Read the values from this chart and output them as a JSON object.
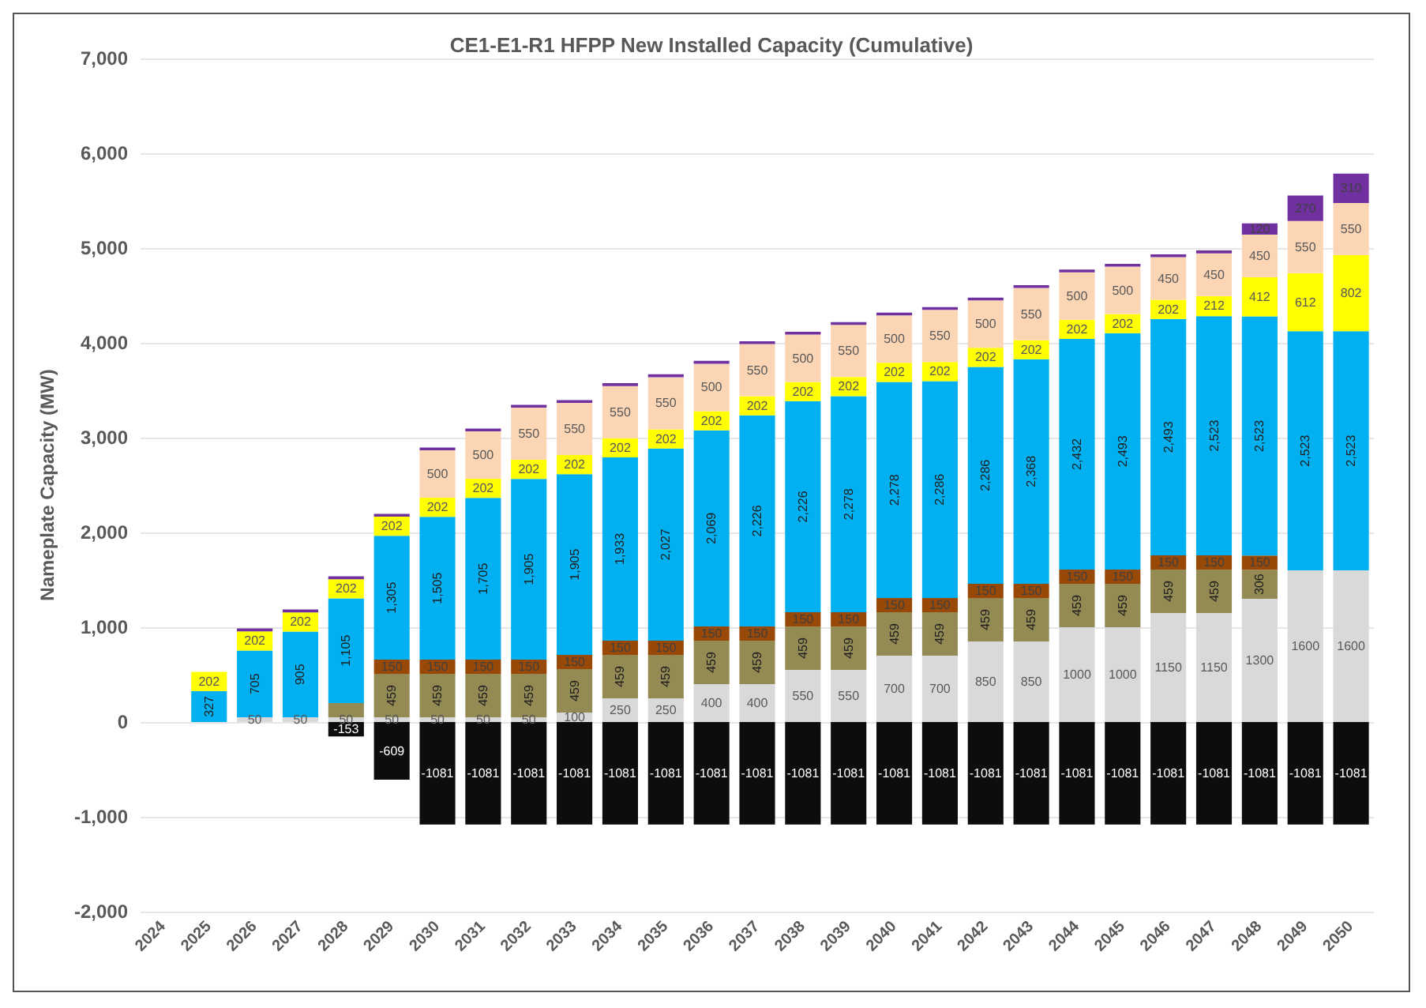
{
  "chart_data": {
    "type": "bar",
    "stacked": true,
    "title": "CE1-E1-R1 HFPP New Installed Capacity (Cumulative)",
    "ylabel": "Nameplate Capacity (MW)",
    "categories": [
      "2024",
      "2025",
      "2026",
      "2027",
      "2028",
      "2029",
      "2030",
      "2031",
      "2032",
      "2033",
      "2034",
      "2035",
      "2036",
      "2037",
      "2038",
      "2039",
      "2040",
      "2041",
      "2042",
      "2043",
      "2044",
      "2045",
      "2046",
      "2047",
      "2048",
      "2049",
      "2050"
    ],
    "ylim": [
      -2000,
      7000
    ],
    "yticks": [
      {
        "value": -2000,
        "label": "-2,000"
      },
      {
        "value": -1000,
        "label": "-1,000"
      },
      0,
      {
        "value": 1000,
        "label": "1,000"
      },
      {
        "value": 2000,
        "label": "2,000"
      },
      {
        "value": 3000,
        "label": "3,000"
      },
      {
        "value": 4000,
        "label": "4,000"
      },
      {
        "value": 5000,
        "label": "5,000"
      },
      {
        "value": 6000,
        "label": "6,000"
      },
      {
        "value": 7000,
        "label": "7,000"
      }
    ],
    "grid": "y",
    "legend": false,
    "series": [
      {
        "color": "#d9d9d9",
        "values": [
          null,
          null,
          50,
          50,
          50,
          50,
          50,
          50,
          50,
          100,
          250,
          250,
          400,
          400,
          550,
          550,
          700,
          700,
          850,
          850,
          1000,
          1000,
          1150,
          1150,
          1300,
          1600,
          1600
        ],
        "value_labels": [
          null,
          null,
          "50",
          "50",
          "50",
          "50",
          "50",
          "50",
          "50",
          "100",
          "250",
          "250",
          "400",
          "400",
          "550",
          "550",
          "700",
          "700",
          "850",
          "850",
          "1000",
          "1000",
          "1150",
          "1150",
          "1300",
          "1600",
          "1600"
        ]
      },
      {
        "color": "#948a54",
        "values": [
          null,
          null,
          null,
          null,
          150,
          459,
          459,
          459,
          459,
          459,
          459,
          459,
          459,
          459,
          459,
          459,
          459,
          459,
          459,
          459,
          459,
          459,
          459,
          459,
          306,
          null,
          null
        ],
        "value_labels": [
          null,
          null,
          null,
          null,
          null,
          "459",
          "459",
          "459",
          "459",
          "459",
          "459",
          "459",
          "459",
          "459",
          "459",
          "459",
          "459",
          "459",
          "459",
          "459",
          "459",
          "459",
          "459",
          "459",
          "306",
          null,
          null
        ]
      },
      {
        "color": "#984807",
        "values": [
          null,
          null,
          null,
          null,
          null,
          150,
          150,
          150,
          150,
          150,
          150,
          150,
          150,
          150,
          150,
          150,
          150,
          150,
          150,
          150,
          150,
          150,
          150,
          150,
          150,
          null,
          null
        ],
        "value_labels": [
          null,
          null,
          null,
          null,
          null,
          "150",
          "150",
          "150",
          "150",
          "150",
          "150",
          "150",
          "150",
          "150",
          "150",
          "150",
          "150",
          "150",
          "150",
          "150",
          "150",
          "150",
          "150",
          "150",
          "150",
          null,
          null
        ]
      },
      {
        "color": "#00b0f0",
        "values": [
          null,
          327,
          705,
          905,
          1105,
          1305,
          1505,
          1705,
          1905,
          1905,
          1933,
          2027,
          2069,
          2226,
          2226,
          2278,
          2278,
          2286,
          2286,
          2368,
          2432,
          2493,
          2493,
          2523,
          2523,
          2523,
          2523
        ],
        "value_labels": [
          null,
          "327",
          "705",
          "905",
          "1,105",
          "1,305",
          "1,505",
          "1,705",
          "1,905",
          "1,905",
          "1,933",
          "2,027",
          "2,069",
          "2,226",
          "2,226",
          "2,278",
          "2,278",
          "2,286",
          "2,286",
          "2,368",
          "2,432",
          "2,493",
          "2,493",
          "2,523",
          "2,523",
          "2,523",
          "2,523"
        ]
      },
      {
        "color": "#ffff00",
        "values": [
          null,
          202,
          202,
          202,
          202,
          202,
          202,
          202,
          202,
          202,
          202,
          202,
          202,
          202,
          202,
          202,
          202,
          202,
          202,
          202,
          202,
          202,
          202,
          212,
          412,
          612,
          802
        ],
        "value_labels": [
          null,
          "202",
          "202",
          "202",
          "202",
          "202",
          "202",
          "202",
          "202",
          "202",
          "202",
          "202",
          "202",
          "202",
          "202",
          "202",
          "202",
          "202",
          "202",
          "202",
          "202",
          "202",
          "202",
          "212",
          "412",
          "612",
          "802"
        ]
      },
      {
        "color": "#fcd5b5",
        "values": [
          null,
          null,
          null,
          null,
          null,
          null,
          500,
          500,
          550,
          550,
          550,
          550,
          500,
          550,
          500,
          550,
          500,
          550,
          500,
          550,
          500,
          500,
          450,
          450,
          450,
          550,
          550
        ],
        "value_labels": [
          null,
          null,
          null,
          null,
          null,
          null,
          "500",
          "500",
          "550",
          "550",
          "550",
          "550",
          "500",
          "550",
          "500",
          "550",
          "500",
          "550",
          "500",
          "550",
          "500",
          "500",
          "450",
          "450",
          "450",
          "550",
          "550"
        ]
      },
      {
        "color": "#7030a0",
        "values": [
          null,
          null,
          30,
          30,
          30,
          30,
          30,
          30,
          30,
          30,
          30,
          30,
          30,
          30,
          30,
          30,
          30,
          30,
          30,
          30,
          30,
          30,
          30,
          30,
          120,
          270,
          310
        ],
        "value_labels": [
          null,
          null,
          null,
          null,
          null,
          null,
          null,
          null,
          null,
          null,
          null,
          null,
          null,
          null,
          null,
          null,
          null,
          null,
          null,
          null,
          null,
          null,
          null,
          null,
          "120",
          "270",
          "310"
        ]
      },
      {
        "color": "#0d0d0d",
        "values": [
          null,
          null,
          null,
          null,
          -153,
          -609,
          -1081,
          -1081,
          -1081,
          -1081,
          -1081,
          -1081,
          -1081,
          -1081,
          -1081,
          -1081,
          -1081,
          -1081,
          -1081,
          -1081,
          -1081,
          -1081,
          -1081,
          -1081,
          -1081,
          -1081,
          -1081
        ],
        "value_labels": [
          null,
          null,
          null,
          null,
          "-153",
          "-609",
          "-1081",
          "-1081",
          "-1081",
          "-1081",
          "-1081",
          "-1081",
          "-1081",
          "-1081",
          "-1081",
          "-1081",
          "-1081",
          "-1081",
          "-1081",
          "-1081",
          "-1081",
          "-1081",
          "-1081",
          "-1081",
          "-1081",
          "-1081",
          "-1081"
        ]
      }
    ]
  }
}
